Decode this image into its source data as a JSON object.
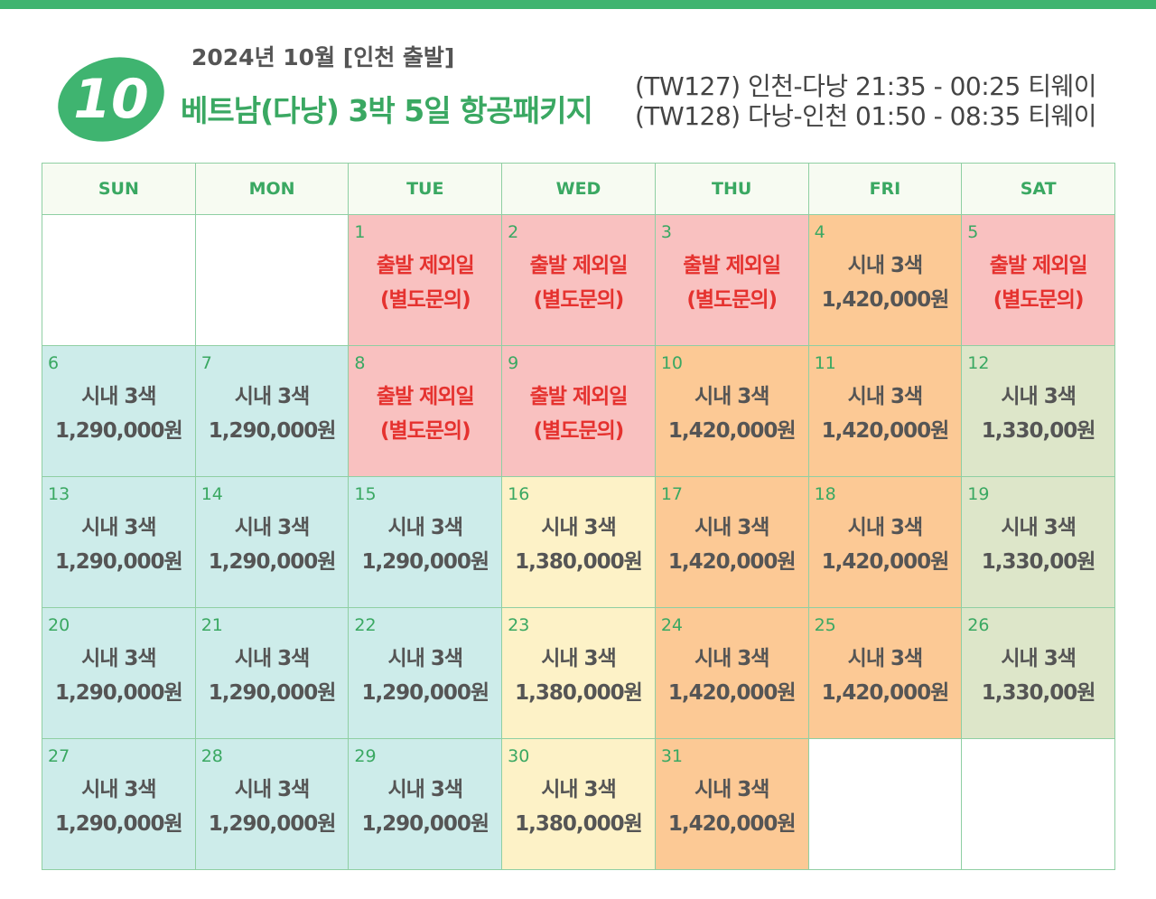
{
  "header": {
    "badge": "10",
    "subtitle": "2024년 10월 [인천 출발]",
    "title": "베트남(다낭) 3박 5일 항공패키지",
    "flights": [
      "(TW127) 인천-다낭 21:35 - 00:25 티웨이",
      "(TW128) 다낭-인천 01:50 - 08:35 티웨이"
    ]
  },
  "calendar": {
    "weekdays": [
      "SUN",
      "MON",
      "TUE",
      "WED",
      "THU",
      "FRI",
      "SAT"
    ],
    "weeks": [
      [
        null,
        null,
        {
          "day": 1,
          "line1": "출발 제외일",
          "line2": "(별도문의)",
          "color": "#f9c1c0",
          "text_color": "#e5322f"
        },
        {
          "day": 2,
          "line1": "출발 제외일",
          "line2": "(별도문의)",
          "color": "#f9c1c0",
          "text_color": "#e5322f"
        },
        {
          "day": 3,
          "line1": "출발 제외일",
          "line2": "(별도문의)",
          "color": "#f9c1c0",
          "text_color": "#e5322f"
        },
        {
          "day": 4,
          "line1": "시내 3색",
          "line2": "1,420,000원",
          "color": "#fcc995",
          "text_color": "#555555"
        },
        {
          "day": 5,
          "line1": "출발 제외일",
          "line2": "(별도문의)",
          "color": "#f9c1c0",
          "text_color": "#e5322f"
        }
      ],
      [
        {
          "day": 6,
          "line1": "시내 3색",
          "line2": "1,290,000원",
          "color": "#cdecea",
          "text_color": "#555555"
        },
        {
          "day": 7,
          "line1": "시내 3색",
          "line2": "1,290,000원",
          "color": "#cdecea",
          "text_color": "#555555"
        },
        {
          "day": 8,
          "line1": "출발 제외일",
          "line2": "(별도문의)",
          "color": "#f9c1c0",
          "text_color": "#e5322f"
        },
        {
          "day": 9,
          "line1": "출발 제외일",
          "line2": "(별도문의)",
          "color": "#f9c1c0",
          "text_color": "#e5322f"
        },
        {
          "day": 10,
          "line1": "시내 3색",
          "line2": "1,420,000원",
          "color": "#fcc995",
          "text_color": "#555555"
        },
        {
          "day": 11,
          "line1": "시내 3색",
          "line2": "1,420,000원",
          "color": "#fcc995",
          "text_color": "#555555"
        },
        {
          "day": 12,
          "line1": "시내 3색",
          "line2": "1,330,00원",
          "color": "#dde6c9",
          "text_color": "#555555"
        }
      ],
      [
        {
          "day": 13,
          "line1": "시내 3색",
          "line2": "1,290,000원",
          "color": "#cdecea",
          "text_color": "#555555"
        },
        {
          "day": 14,
          "line1": "시내 3색",
          "line2": "1,290,000원",
          "color": "#cdecea",
          "text_color": "#555555"
        },
        {
          "day": 15,
          "line1": "시내 3색",
          "line2": "1,290,000원",
          "color": "#cdecea",
          "text_color": "#555555"
        },
        {
          "day": 16,
          "line1": "시내 3색",
          "line2": "1,380,000원",
          "color": "#fdf2c7",
          "text_color": "#555555"
        },
        {
          "day": 17,
          "line1": "시내 3색",
          "line2": "1,420,000원",
          "color": "#fcc995",
          "text_color": "#555555"
        },
        {
          "day": 18,
          "line1": "시내 3색",
          "line2": "1,420,000원",
          "color": "#fcc995",
          "text_color": "#555555"
        },
        {
          "day": 19,
          "line1": "시내 3색",
          "line2": "1,330,00원",
          "color": "#dde6c9",
          "text_color": "#555555"
        }
      ],
      [
        {
          "day": 20,
          "line1": "시내 3색",
          "line2": "1,290,000원",
          "color": "#cdecea",
          "text_color": "#555555"
        },
        {
          "day": 21,
          "line1": "시내 3색",
          "line2": "1,290,000원",
          "color": "#cdecea",
          "text_color": "#555555"
        },
        {
          "day": 22,
          "line1": "시내 3색",
          "line2": "1,290,000원",
          "color": "#cdecea",
          "text_color": "#555555"
        },
        {
          "day": 23,
          "line1": "시내 3색",
          "line2": "1,380,000원",
          "color": "#fdf2c7",
          "text_color": "#555555"
        },
        {
          "day": 24,
          "line1": "시내 3색",
          "line2": "1,420,000원",
          "color": "#fcc995",
          "text_color": "#555555"
        },
        {
          "day": 25,
          "line1": "시내 3색",
          "line2": "1,420,000원",
          "color": "#fcc995",
          "text_color": "#555555"
        },
        {
          "day": 26,
          "line1": "시내 3색",
          "line2": "1,330,00원",
          "color": "#dde6c9",
          "text_color": "#555555"
        }
      ],
      [
        {
          "day": 27,
          "line1": "시내 3색",
          "line2": "1,290,000원",
          "color": "#cdecea",
          "text_color": "#555555"
        },
        {
          "day": 28,
          "line1": "시내 3색",
          "line2": "1,290,000원",
          "color": "#cdecea",
          "text_color": "#555555"
        },
        {
          "day": 29,
          "line1": "시내 3색",
          "line2": "1,290,000원",
          "color": "#cdecea",
          "text_color": "#555555"
        },
        {
          "day": 30,
          "line1": "시내 3색",
          "line2": "1,380,000원",
          "color": "#fdf2c7",
          "text_color": "#555555"
        },
        {
          "day": 31,
          "line1": "시내 3색",
          "line2": "1,420,000원",
          "color": "#fcc995",
          "text_color": "#555555"
        },
        null,
        null
      ]
    ]
  }
}
